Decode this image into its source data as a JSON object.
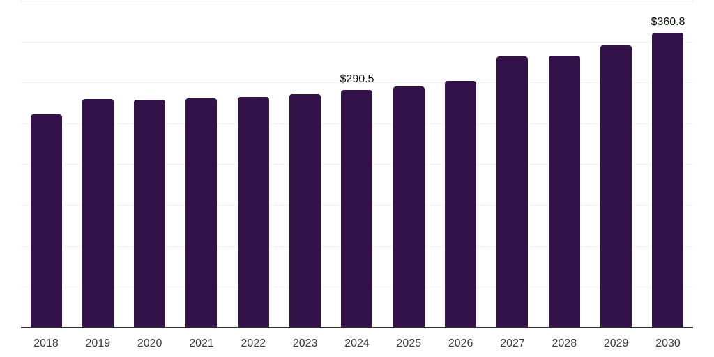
{
  "chart_data": {
    "type": "bar",
    "title": "",
    "xlabel": "",
    "ylabel": "",
    "categories": [
      "2018",
      "2019",
      "2020",
      "2021",
      "2022",
      "2023",
      "2024",
      "2025",
      "2026",
      "2027",
      "2028",
      "2029",
      "2030"
    ],
    "values": [
      261,
      280,
      279,
      281,
      282.5,
      286,
      290.5,
      295.5,
      302,
      331.5,
      333,
      345.5,
      360.8
    ],
    "value_labels": [
      "",
      "",
      "",
      "",
      "",
      "",
      "$290.5",
      "",
      "",
      "",
      "",
      "",
      "$360.8"
    ],
    "ylim": [
      0,
      400
    ],
    "gridline_step": 50,
    "grid": true,
    "legend": false,
    "y_axis_labels_visible": false,
    "colors": {
      "bar": "#33124a",
      "axis": "#2d2d2d",
      "gridline": "#f2f2f2",
      "top_gridline": "#e3e3e3",
      "tick_label": "#3a3a3a",
      "value_label": "#0e0e0e",
      "background": "#ffffff"
    }
  }
}
